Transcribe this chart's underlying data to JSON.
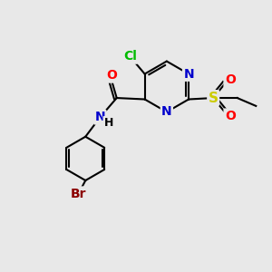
{
  "background_color": "#e8e8e8",
  "atom_colors": {
    "C": "#000000",
    "N": "#0000cc",
    "O": "#ff0000",
    "S": "#cccc00",
    "Cl": "#00bb00",
    "Br": "#8B0000",
    "H": "#000000"
  },
  "bond_color": "#000000",
  "font_size": 9
}
